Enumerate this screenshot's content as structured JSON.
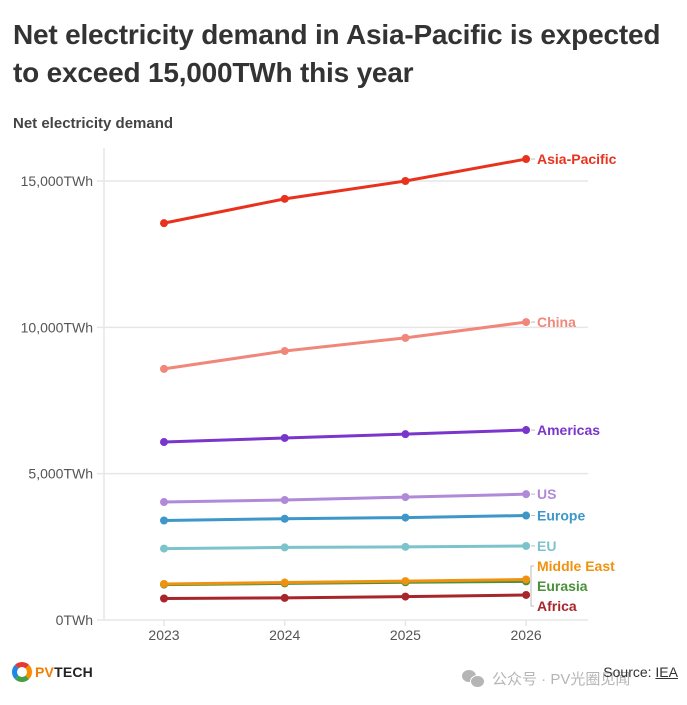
{
  "header": {
    "title": "Net electricity demand in Asia-Pacific is expected to exceed 15,000TWh this year",
    "subtitle": "Net electricity demand"
  },
  "chart_data": {
    "type": "line",
    "title": "Net electricity demand in Asia-Pacific is expected to exceed 15,000TWh this year",
    "subtitle": "Net electricity demand",
    "xlabel": "",
    "ylabel": "",
    "x": [
      "2023",
      "2024",
      "2025",
      "2026"
    ],
    "ylim": [
      0,
      16000
    ],
    "yticks": [
      0,
      5000,
      10000,
      15000
    ],
    "ytick_labels": [
      "0TWh",
      "5,000TWh",
      "10,000TWh",
      "15,000TWh"
    ],
    "grid": "horizontal",
    "legend": "direct labels at right end of lines",
    "series": [
      {
        "name": "Asia-Pacific",
        "color": "#e8321e",
        "values": [
          13560,
          14390,
          15000,
          15750
        ]
      },
      {
        "name": "China",
        "color": "#f0877a",
        "values": [
          8580,
          9190,
          9640,
          10180
        ]
      },
      {
        "name": "Americas",
        "color": "#7a35cc",
        "values": [
          6080,
          6220,
          6350,
          6490
        ]
      },
      {
        "name": "US",
        "color": "#b08ad8",
        "values": [
          4030,
          4100,
          4200,
          4300
        ]
      },
      {
        "name": "Europe",
        "color": "#3e97c9",
        "values": [
          3400,
          3460,
          3500,
          3570
        ]
      },
      {
        "name": "EU",
        "color": "#7dc3cc",
        "values": [
          2440,
          2480,
          2500,
          2530
        ]
      },
      {
        "name": "Middle East",
        "color": "#f0920f",
        "values": [
          1230,
          1280,
          1330,
          1385
        ]
      },
      {
        "name": "Eurasia",
        "color": "#4a8f3a",
        "values": [
          1210,
          1250,
          1290,
          1320
        ]
      },
      {
        "name": "Africa",
        "color": "#a8262b",
        "values": [
          735,
          755,
          800,
          855
        ]
      }
    ]
  },
  "footer": {
    "logo_pv": "PV",
    "logo_tech": "TECH",
    "watermark": "公众号 · PV光圈见闻",
    "source_prefix": "Source: ",
    "source_org": "IEA"
  }
}
